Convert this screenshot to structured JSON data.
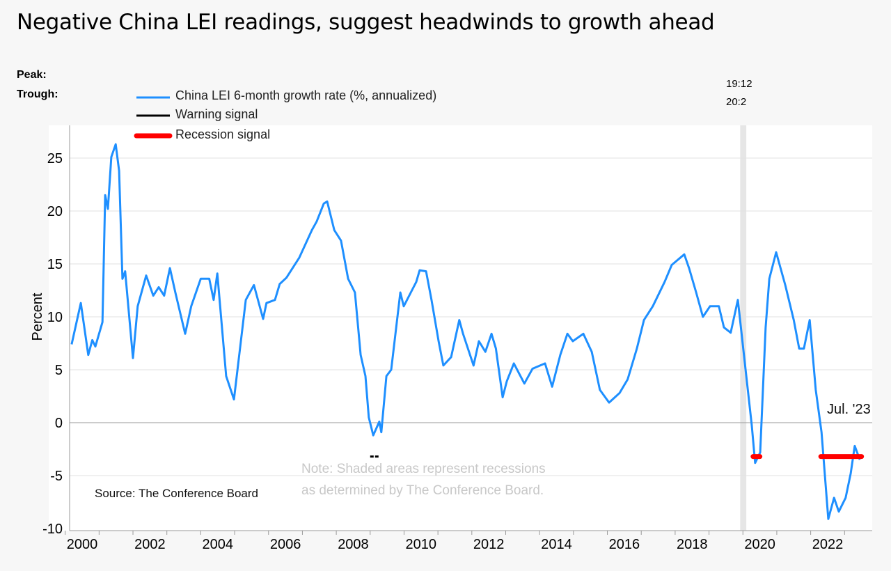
{
  "title": "Negative China LEI readings, suggest headwinds to growth ahead",
  "peak_label": "Peak:",
  "trough_label": "Trough:",
  "peak_date": "19:12",
  "trough_date": "20:2",
  "source": "Source: The Conference Board",
  "note_line1": "Note: Shaded areas represent recessions",
  "note_line2": "as determined by The Conference Board.",
  "end_label": "Jul. '23",
  "colors": {
    "series": "#1e8fff",
    "warning": "#000000",
    "recession": "#ff0000",
    "shading": "#e6e6e6"
  },
  "chart_data": {
    "type": "line",
    "title": "Negative China LEI readings, suggest headwinds to growth ahead",
    "xlabel": "",
    "ylabel": "Percent",
    "ylim": [
      -10,
      27
    ],
    "xlim": [
      2000.1,
      2023.8
    ],
    "yticks": [
      -10,
      -5,
      0,
      5,
      10,
      15,
      20,
      25
    ],
    "xticks": [
      "2000",
      "2002",
      "2004",
      "2006",
      "2008",
      "2010",
      "2012",
      "2014",
      "2016",
      "2018",
      "2020",
      "2022"
    ],
    "grid": true,
    "legend_placement": "top-left",
    "legend": [
      "China LEI 6-month growth rate (%, annualized)",
      "Warning signal",
      "Recession signal"
    ],
    "series": [
      {
        "name": "China LEI 6-month growth rate (%, annualized)",
        "points": [
          [
            2000.19,
            7.4
          ],
          [
            2000.46,
            11.3
          ],
          [
            2000.68,
            6.4
          ],
          [
            2000.8,
            7.8
          ],
          [
            2000.89,
            7.2
          ],
          [
            2001.1,
            9.5
          ],
          [
            2001.18,
            21.5
          ],
          [
            2001.26,
            20.2
          ],
          [
            2001.36,
            25.1
          ],
          [
            2001.49,
            26.3
          ],
          [
            2001.59,
            23.8
          ],
          [
            2001.69,
            13.6
          ],
          [
            2001.77,
            14.3
          ],
          [
            2002.0,
            6.1
          ],
          [
            2002.14,
            11
          ],
          [
            2002.39,
            13.9
          ],
          [
            2002.6,
            12
          ],
          [
            2002.76,
            12.8
          ],
          [
            2002.92,
            12
          ],
          [
            2003.09,
            14.6
          ],
          [
            2003.25,
            12.3
          ],
          [
            2003.54,
            8.4
          ],
          [
            2003.72,
            11
          ],
          [
            2004.0,
            13.6
          ],
          [
            2004.25,
            13.6
          ],
          [
            2004.38,
            11.6
          ],
          [
            2004.49,
            14.1
          ],
          [
            2004.75,
            4.4
          ],
          [
            2004.98,
            2.2
          ],
          [
            2005.33,
            11.6
          ],
          [
            2005.57,
            13
          ],
          [
            2005.84,
            9.8
          ],
          [
            2005.94,
            11.3
          ],
          [
            2006.19,
            11.6
          ],
          [
            2006.33,
            13.1
          ],
          [
            2006.53,
            13.7
          ],
          [
            2006.91,
            15.6
          ],
          [
            2007.28,
            18.2
          ],
          [
            2007.42,
            19
          ],
          [
            2007.63,
            20.7
          ],
          [
            2007.73,
            20.9
          ],
          [
            2007.94,
            18.2
          ],
          [
            2008.14,
            17.2
          ],
          [
            2008.35,
            13.6
          ],
          [
            2008.55,
            12.3
          ],
          [
            2008.72,
            6.4
          ],
          [
            2008.86,
            4.4
          ],
          [
            2008.96,
            0.5
          ],
          [
            2009.09,
            -1.2
          ],
          [
            2009.27,
            0.1
          ],
          [
            2009.33,
            -0.9
          ],
          [
            2009.48,
            4.4
          ],
          [
            2009.62,
            5
          ],
          [
            2009.89,
            12.3
          ],
          [
            2009.99,
            11
          ],
          [
            2010.2,
            12.3
          ],
          [
            2010.36,
            13.3
          ],
          [
            2010.46,
            14.4
          ],
          [
            2010.65,
            14.3
          ],
          [
            2010.81,
            11.6
          ],
          [
            2011.02,
            7.7
          ],
          [
            2011.16,
            5.4
          ],
          [
            2011.39,
            6.2
          ],
          [
            2011.63,
            9.7
          ],
          [
            2011.74,
            8.4
          ],
          [
            2012.05,
            5.4
          ],
          [
            2012.21,
            7.7
          ],
          [
            2012.4,
            6.7
          ],
          [
            2012.58,
            8.4
          ],
          [
            2012.71,
            7
          ],
          [
            2012.91,
            2.4
          ],
          [
            2013.03,
            3.9
          ],
          [
            2013.24,
            5.6
          ],
          [
            2013.55,
            3.7
          ],
          [
            2013.79,
            5.1
          ],
          [
            2014.16,
            5.6
          ],
          [
            2014.37,
            3.4
          ],
          [
            2014.61,
            6.4
          ],
          [
            2014.82,
            8.4
          ],
          [
            2014.98,
            7.7
          ],
          [
            2015.29,
            8.4
          ],
          [
            2015.54,
            6.7
          ],
          [
            2015.78,
            3.1
          ],
          [
            2016.05,
            1.9
          ],
          [
            2016.36,
            2.8
          ],
          [
            2016.6,
            4.1
          ],
          [
            2016.87,
            7
          ],
          [
            2017.08,
            9.7
          ],
          [
            2017.34,
            11
          ],
          [
            2017.69,
            13.3
          ],
          [
            2017.9,
            14.9
          ],
          [
            2018.27,
            15.9
          ],
          [
            2018.41,
            14.6
          ],
          [
            2018.62,
            12.3
          ],
          [
            2018.82,
            10
          ],
          [
            2019.03,
            11
          ],
          [
            2019.29,
            11
          ],
          [
            2019.44,
            9
          ],
          [
            2019.64,
            8.5
          ],
          [
            2019.85,
            11.6
          ],
          [
            2020.1,
            4.4
          ],
          [
            2020.26,
            -0.2
          ],
          [
            2020.36,
            -3.8
          ],
          [
            2020.51,
            -2.8
          ],
          [
            2020.67,
            9
          ],
          [
            2020.78,
            13.6
          ],
          [
            2020.98,
            16.1
          ],
          [
            2021.25,
            13
          ],
          [
            2021.5,
            9.7
          ],
          [
            2021.66,
            7
          ],
          [
            2021.8,
            7
          ],
          [
            2021.97,
            9.7
          ],
          [
            2022.15,
            3.1
          ],
          [
            2022.32,
            -0.9
          ],
          [
            2022.52,
            -9.1
          ],
          [
            2022.69,
            -7.1
          ],
          [
            2022.83,
            -8.4
          ],
          [
            2023.03,
            -7.1
          ],
          [
            2023.18,
            -4.8
          ],
          [
            2023.3,
            -2.2
          ],
          [
            2023.45,
            -3.5
          ]
        ]
      },
      {
        "name": "Warning signal",
        "level": -3.2,
        "ranges": [
          [
            2009.0,
            2009.25
          ]
        ]
      },
      {
        "name": "Recession signal",
        "level": -3.2,
        "ranges": [
          [
            2020.3,
            2020.5
          ],
          [
            2022.3,
            2023.5
          ]
        ]
      }
    ],
    "shaded_recessions": [
      [
        2019.92,
        2020.1
      ]
    ],
    "annotations": [
      "Jul. '23"
    ]
  }
}
